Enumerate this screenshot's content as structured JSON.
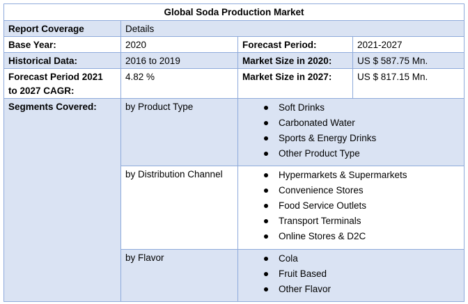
{
  "title": "Global Soda Production Market",
  "header_row": {
    "label": "Report Coverage",
    "value": "Details"
  },
  "base_year": {
    "label": "Base Year:",
    "value": "2020"
  },
  "forecast_period": {
    "label": "Forecast Period:",
    "value": "2021-2027"
  },
  "historical_data": {
    "label": "Historical Data:",
    "value": "2016 to 2019"
  },
  "market_size_2020": {
    "label": "Market Size in 2020:",
    "value": "US $ 587.75 Mn."
  },
  "cagr": {
    "label_line1": "Forecast Period 2021",
    "label_line2": "to 2027 CAGR:",
    "value": "4.82 %"
  },
  "market_size_2027": {
    "label": "Market Size in 2027:",
    "value": "US $ 817.15 Mn."
  },
  "segments_label": "Segments Covered:",
  "segments": [
    {
      "name": "by Product Type",
      "items": [
        "Soft Drinks",
        "Carbonated Water",
        "Sports & Energy Drinks",
        "Other Product Type"
      ]
    },
    {
      "name": "by Distribution Channel",
      "items": [
        "Hypermarkets & Supermarkets",
        "Convenience Stores",
        "Food Service Outlets",
        "Transport Terminals",
        "Online Stores & D2C"
      ]
    },
    {
      "name": "by Flavor",
      "items": [
        "Cola",
        "Fruit Based",
        "Other Flavor"
      ]
    }
  ]
}
